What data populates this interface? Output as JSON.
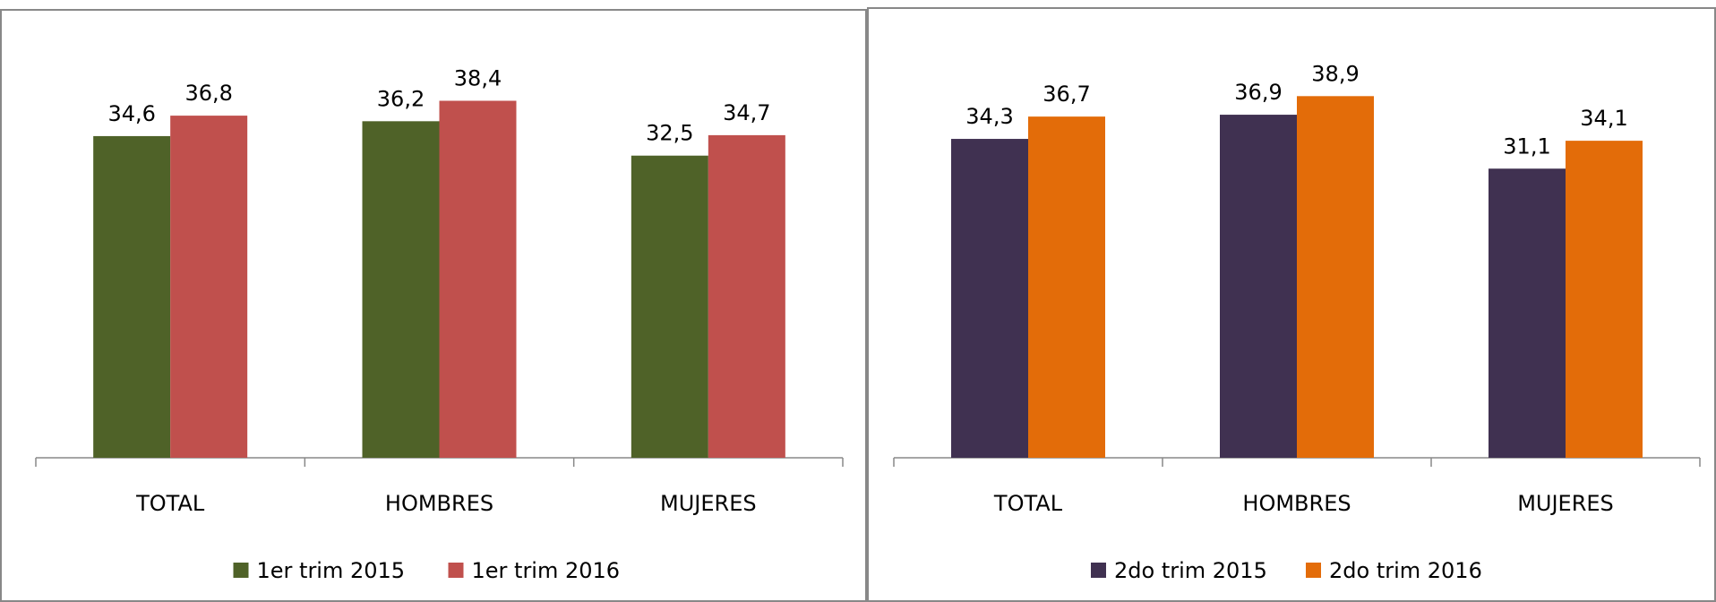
{
  "chart_data": [
    {
      "type": "bar",
      "categories": [
        "TOTAL",
        "HOMBRES",
        "MUJERES"
      ],
      "ylim": [
        0,
        45
      ],
      "series": [
        {
          "name": "1er trim 2015",
          "color": "#4f6228",
          "values": [
            34.6,
            36.2,
            32.5
          ],
          "value_labels": [
            "34,6",
            "36,2",
            "32,5"
          ]
        },
        {
          "name": "1er trim 2016",
          "color": "#c0504d",
          "values": [
            36.8,
            38.4,
            34.7
          ],
          "value_labels": [
            "36,8",
            "38,4",
            "34,7"
          ]
        }
      ],
      "legend": "bottom"
    },
    {
      "type": "bar",
      "categories": [
        "TOTAL",
        "HOMBRES",
        "MUJERES"
      ],
      "ylim": [
        0,
        45
      ],
      "series": [
        {
          "name": "2do trim 2015",
          "color": "#403151",
          "values": [
            34.3,
            36.9,
            31.1
          ],
          "value_labels": [
            "34,3",
            "36,9",
            "31,1"
          ]
        },
        {
          "name": "2do trim 2016",
          "color": "#e36c09",
          "values": [
            36.7,
            38.9,
            34.1
          ],
          "value_labels": [
            "36,7",
            "38,9",
            "34,1"
          ]
        }
      ],
      "legend": "bottom"
    }
  ]
}
